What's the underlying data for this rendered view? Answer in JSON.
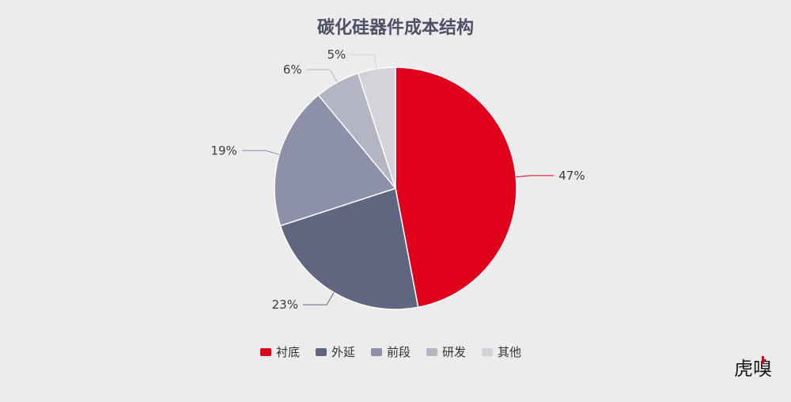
{
  "chart_data": {
    "type": "pie",
    "title": "碳化硅器件成本结构",
    "slices": [
      {
        "name": "衬底",
        "value": 47,
        "label": "47%",
        "color": "#e0001b"
      },
      {
        "name": "外延",
        "value": 23,
        "label": "23%",
        "color": "#616680"
      },
      {
        "name": "前段",
        "value": 19,
        "label": "19%",
        "color": "#8c90a8"
      },
      {
        "name": "研发",
        "value": 6,
        "label": "6%",
        "color": "#b3b5c2"
      },
      {
        "name": "其他",
        "value": 5,
        "label": "5%",
        "color": "#d2d4da"
      }
    ],
    "legend_position": "bottom",
    "start_angle": "12 o'clock",
    "direction": "clockwise"
  },
  "watermark": {
    "text": "虎嗅",
    "accent_color": "#e0001b"
  }
}
